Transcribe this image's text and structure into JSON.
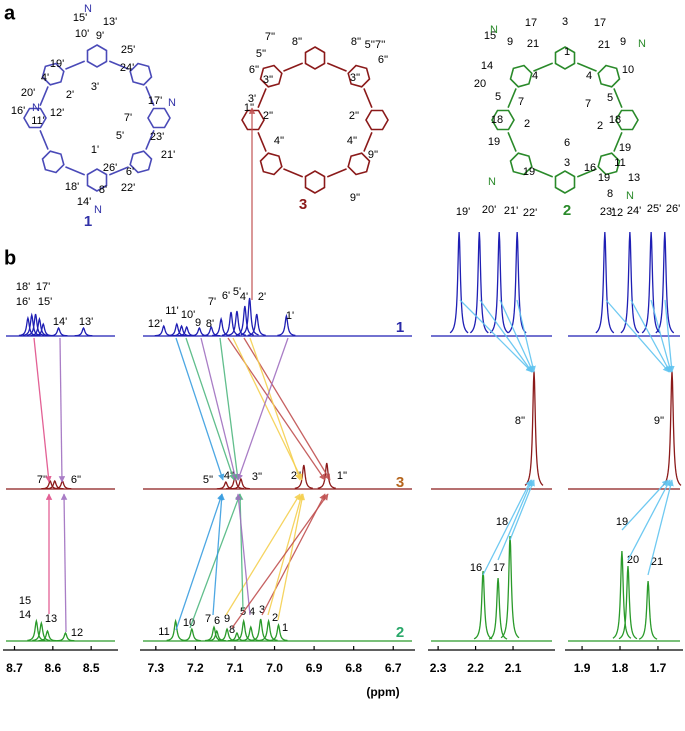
{
  "panel_a": {
    "label": "a",
    "structures": [
      {
        "name": "1",
        "color": "#3232a8",
        "atom_labels": [
          "N",
          "15'",
          "13'",
          "10'",
          "9'",
          "25'",
          "19'",
          "24'",
          "4'",
          "3'",
          "20'",
          "2'",
          "17'",
          "N",
          "N",
          "16'",
          "11'",
          "12'",
          "7'",
          "5'",
          "23'",
          "1'",
          "21'",
          "6'",
          "26'",
          "18'",
          "8'",
          "22'",
          "14'",
          "N"
        ]
      },
      {
        "name": "3",
        "color": "#8b1a1a",
        "atom_labels": [
          "7''",
          "8''",
          "8''",
          "5''",
          "5''7''",
          "6''",
          "6''",
          "3''",
          "3''",
          "1''",
          "2''",
          "2''",
          "4''",
          "4''",
          "9''",
          "9''"
        ]
      },
      {
        "name": "2",
        "color": "#2a8a2a",
        "atom_labels": [
          "17",
          "3",
          "17",
          "15",
          "N",
          "9",
          "21",
          "21",
          "9",
          "N",
          "1",
          "14",
          "4",
          "4",
          "10",
          "20",
          "5",
          "7",
          "7",
          "5",
          "18",
          "18",
          "2",
          "2",
          "6",
          "19",
          "19",
          "11",
          "3",
          "16",
          "19",
          "19",
          "8",
          "13",
          "N",
          "N",
          "12"
        ]
      }
    ]
  },
  "panel_b": {
    "label": "b",
    "axis_title": "(ppm)",
    "axes": [
      {
        "xlim": [
          8.73,
          8.43
        ],
        "xticks": [
          8.7,
          8.6,
          8.5
        ]
      },
      {
        "xlim": [
          7.34,
          6.645
        ],
        "xticks": [
          7.3,
          7.2,
          7.1,
          {
            "value": 7,
            "label": "7.0"
          },
          6.9,
          6.8,
          6.7
        ]
      },
      {
        "xlim": [
          2.327,
          1.988
        ],
        "xticks": [
          2.3,
          2.2,
          2.1
        ]
      },
      {
        "xlim": [
          1.945,
          1.634
        ],
        "xticks": [
          1.9,
          1.8,
          1.7
        ]
      }
    ],
    "spectra": [
      {
        "name": "1",
        "color": "#1f1fb4",
        "label_color": "#2a2aa8",
        "panels": [
          {
            "peaks": [
              {
                "ppm": 8.665,
                "height": 18
              },
              {
                "ppm": 8.655,
                "height": 21
              },
              {
                "ppm": 8.645,
                "height": 22
              },
              {
                "ppm": 8.635,
                "height": 17
              },
              {
                "ppm": 8.625,
                "height": 12
              },
              {
                "ppm": 8.585,
                "height": 8
              },
              {
                "ppm": 8.52,
                "height": 8
              }
            ],
            "labels": [
              "18'",
              "17'",
              "16'",
              "15'",
              "14'",
              "13'"
            ]
          },
          {
            "peaks": [
              {
                "ppm": 7.28,
                "height": 10
              },
              {
                "ppm": 7.247,
                "height": 12
              },
              {
                "ppm": 7.235,
                "height": 10
              },
              {
                "ppm": 7.222,
                "height": 9
              },
              {
                "ppm": 7.19,
                "height": 8
              },
              {
                "ppm": 7.16,
                "height": 9
              },
              {
                "ppm": 7.135,
                "height": 17
              },
              {
                "ppm": 7.11,
                "height": 24
              },
              {
                "ppm": 7.095,
                "height": 25
              },
              {
                "ppm": 7.075,
                "height": 30
              },
              {
                "ppm": 7.063,
                "height": 38
              },
              {
                "ppm": 7.045,
                "height": 22
              },
              {
                "ppm": 6.97,
                "height": 20
              }
            ],
            "labels": [
              "12'",
              "11'",
              "10'",
              "9",
              "8'",
              "7'",
              "6'",
              "5'",
              "4'",
              "3'",
              "2'",
              "1'"
            ]
          },
          {
            "peaks": [
              {
                "ppm": 2.244,
                "height": 104
              },
              {
                "ppm": 2.19,
                "height": 104
              },
              {
                "ppm": 2.137,
                "height": 104
              },
              {
                "ppm": 2.089,
                "height": 104
              }
            ],
            "labels": [
              "19'",
              "20'",
              "21'",
              "22'"
            ]
          },
          {
            "peaks": [
              {
                "ppm": 1.84,
                "height": 104
              },
              {
                "ppm": 1.774,
                "height": 104
              },
              {
                "ppm": 1.718,
                "height": 104
              },
              {
                "ppm": 1.682,
                "height": 104
              }
            ],
            "labels": [
              "23'",
              "24'",
              "25'",
              "26'"
            ]
          }
        ]
      },
      {
        "name": "3",
        "color": "#8b1a1a",
        "label_color": "#b5651d",
        "panels": [
          {
            "peaks": [
              {
                "ppm": 8.607,
                "height": 8
              },
              {
                "ppm": 8.595,
                "height": 8
              },
              {
                "ppm": 8.575,
                "height": 8
              }
            ],
            "labels": [
              "7''",
              "6''"
            ]
          },
          {
            "peaks": [
              {
                "ppm": 7.123,
                "height": 7
              },
              {
                "ppm": 7.1,
                "height": 12
              },
              {
                "ppm": 7.085,
                "height": 10
              },
              {
                "ppm": 6.926,
                "height": 24
              },
              {
                "ppm": 6.868,
                "height": 26
              }
            ],
            "labels": [
              "5''",
              "4''",
              "3''",
              "2''",
              "1''"
            ]
          },
          {
            "peaks": [
              {
                "ppm": 2.044,
                "height": 118
              }
            ],
            "labels": [
              "8''"
            ]
          },
          {
            "peaks": [
              {
                "ppm": 1.663,
                "height": 118
              }
            ],
            "labels": [
              "9''"
            ]
          }
        ]
      },
      {
        "name": "2",
        "color": "#2a9a2a",
        "label_color": "#2aa86a",
        "panels": [
          {
            "peaks": [
              {
                "ppm": 8.643,
                "height": 20
              },
              {
                "ppm": 8.63,
                "height": 18
              },
              {
                "ppm": 8.614,
                "height": 10
              },
              {
                "ppm": 8.567,
                "height": 8
              }
            ],
            "labels": [
              "15",
              "14",
              "13",
              "12"
            ]
          },
          {
            "peaks": [
              {
                "ppm": 7.25,
                "height": 20
              },
              {
                "ppm": 7.209,
                "height": 12
              },
              {
                "ppm": 7.153,
                "height": 14
              },
              {
                "ppm": 7.146,
                "height": 10
              },
              {
                "ppm": 7.12,
                "height": 12
              },
              {
                "ppm": 7.095,
                "height": 8
              },
              {
                "ppm": 7.078,
                "height": 20
              },
              {
                "ppm": 7.06,
                "height": 14
              },
              {
                "ppm": 7.035,
                "height": 22
              },
              {
                "ppm": 7.015,
                "height": 20
              },
              {
                "ppm": 6.99,
                "height": 16
              }
            ],
            "labels": [
              "11",
              "10",
              "7",
              "6",
              "9",
              "8",
              "5",
              "4",
              "3",
              "2",
              "1"
            ]
          },
          {
            "peaks": [
              {
                "ppm": 2.18,
                "height": 70
              },
              {
                "ppm": 2.14,
                "height": 63
              },
              {
                "ppm": 2.108,
                "height": 105
              }
            ],
            "labels": [
              "16",
              "17",
              "18"
            ]
          },
          {
            "peaks": [
              {
                "ppm": 1.795,
                "height": 90
              },
              {
                "ppm": 1.779,
                "height": 75
              },
              {
                "ppm": 1.726,
                "height": 60
              }
            ],
            "labels": [
              "19",
              "20",
              "21"
            ]
          }
        ]
      }
    ]
  }
}
